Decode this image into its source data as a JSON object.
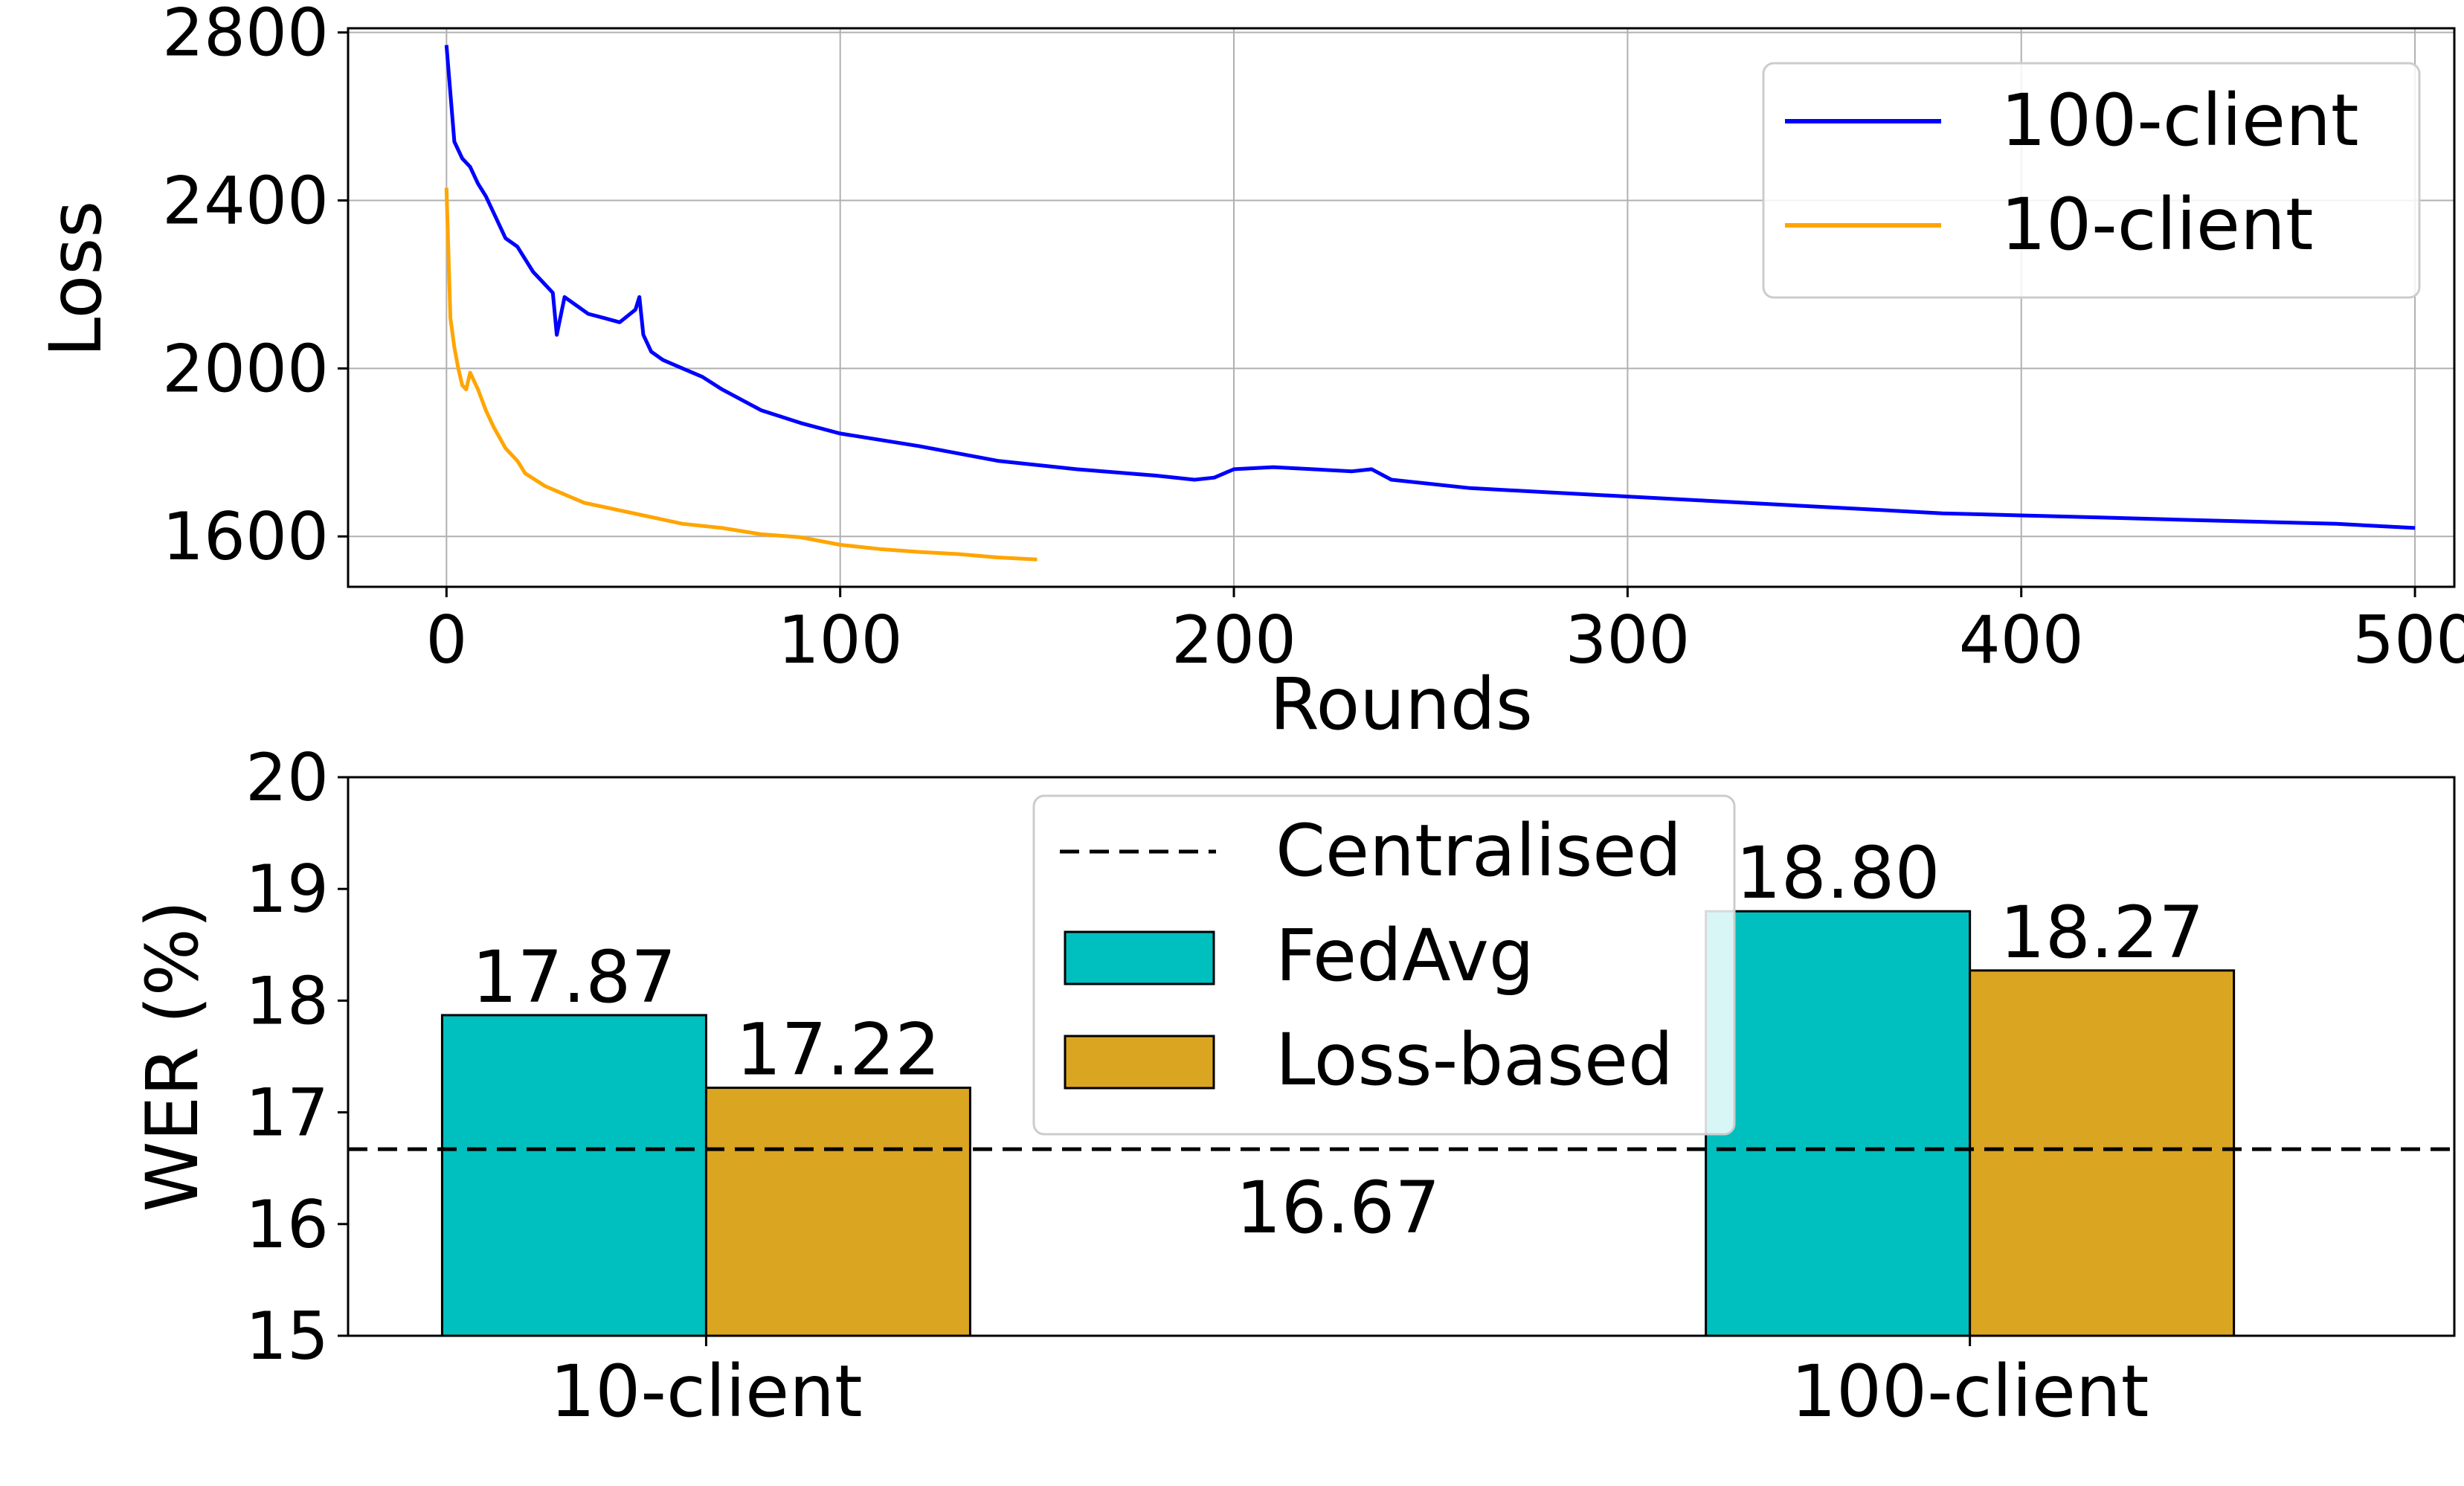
{
  "chart_data": [
    {
      "type": "line",
      "title": "",
      "xlabel": "Rounds",
      "ylabel": "Loss",
      "xlim": [
        -25,
        510
      ],
      "ylim": [
        1480,
        2810
      ],
      "xticks": [
        0,
        100,
        200,
        300,
        400,
        500
      ],
      "yticks": [
        1600,
        2000,
        2400,
        2800
      ],
      "grid": true,
      "legend_position": "top-right",
      "series": [
        {
          "name": "100-client",
          "color": "#0000ff",
          "x": [
            0,
            2,
            4,
            6,
            8,
            10,
            12,
            15,
            18,
            20,
            22,
            25,
            27,
            28,
            30,
            33,
            36,
            40,
            44,
            48,
            49,
            50,
            52,
            55,
            60,
            65,
            70,
            80,
            90,
            100,
            120,
            140,
            160,
            180,
            190,
            195,
            200,
            210,
            220,
            230,
            235,
            240,
            260,
            280,
            300,
            320,
            340,
            360,
            380,
            400,
            420,
            440,
            460,
            480,
            500
          ],
          "y": [
            2770,
            2540,
            2500,
            2480,
            2440,
            2410,
            2370,
            2310,
            2290,
            2260,
            2230,
            2200,
            2180,
            2080,
            2170,
            2150,
            2130,
            2120,
            2110,
            2140,
            2170,
            2080,
            2040,
            2020,
            2000,
            1980,
            1950,
            1900,
            1870,
            1845,
            1815,
            1780,
            1760,
            1745,
            1735,
            1740,
            1760,
            1765,
            1760,
            1755,
            1760,
            1735,
            1715,
            1705,
            1695,
            1685,
            1675,
            1665,
            1655,
            1650,
            1645,
            1640,
            1635,
            1630,
            1620
          ]
        },
        {
          "name": "10-client",
          "color": "#ffa500",
          "x": [
            0,
            1,
            2,
            3,
            4,
            5,
            6,
            8,
            10,
            12,
            15,
            18,
            20,
            25,
            30,
            35,
            40,
            50,
            60,
            70,
            80,
            90,
            100,
            110,
            120,
            130,
            140,
            150
          ],
          "y": [
            2430,
            2120,
            2050,
            2000,
            1960,
            1950,
            1990,
            1950,
            1900,
            1860,
            1810,
            1780,
            1750,
            1720,
            1700,
            1680,
            1670,
            1650,
            1630,
            1620,
            1605,
            1598,
            1580,
            1570,
            1563,
            1558,
            1550,
            1545
          ]
        }
      ]
    },
    {
      "type": "bar",
      "title": "",
      "xlabel": "",
      "ylabel": "WER (%)",
      "ylim": [
        15,
        20
      ],
      "yticks": [
        15,
        16,
        17,
        18,
        19,
        20
      ],
      "categories": [
        "10-client",
        "100-client"
      ],
      "legend_position": "top-center",
      "series": [
        {
          "name": "FedAvg",
          "color": "#00bfbf",
          "values": [
            17.87,
            18.8
          ],
          "labels": [
            "17.87",
            "18.80"
          ]
        },
        {
          "name": "Loss-based",
          "color": "#daa520",
          "values": [
            17.22,
            18.27
          ],
          "labels": [
            "17.22",
            "18.27"
          ]
        }
      ],
      "reference_line": {
        "name": "Centralised",
        "value": 16.67,
        "label": "16.67",
        "style": "dashed",
        "color": "#000000"
      }
    }
  ]
}
